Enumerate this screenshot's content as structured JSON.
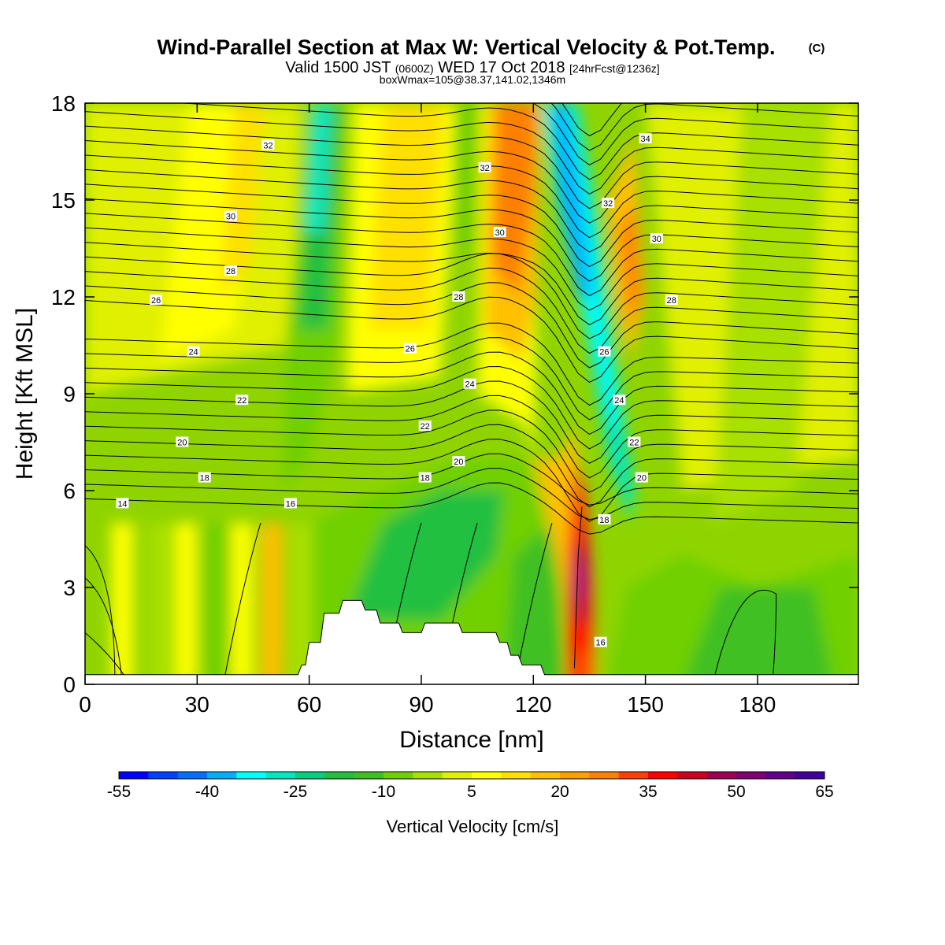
{
  "figure": {
    "title": "Wind-Parallel Section at Max W: Vertical Velocity & Pot.Temp.",
    "copyright": "(C)",
    "subtitle_a": "Valid 1500 JST",
    "subtitle_b": "(0600Z)",
    "subtitle_c": "WED 17 Oct 2018",
    "subtitle_d": "[24hrFcst@1236z]",
    "subtitle2": "boxWmax=105@38.37,141.02,1346m"
  },
  "chart_data": {
    "type": "heatmap",
    "xlabel": "Distance [nm]",
    "ylabel": "Height [Kft MSL]",
    "xlim": [
      0,
      207
    ],
    "ylim": [
      0,
      18
    ],
    "x_ticks": [
      "0",
      "30",
      "60",
      "90",
      "120",
      "150",
      "180"
    ],
    "y_ticks": [
      "0",
      "3",
      "6",
      "9",
      "12",
      "15",
      "18"
    ],
    "colorbar": {
      "title": "Vertical Velocity [cm/s]",
      "min": -55,
      "max": 65,
      "step": 5,
      "tick_labels": [
        "-55",
        "-40",
        "-25",
        "-10",
        "5",
        "20",
        "35",
        "50",
        "65"
      ],
      "colors": [
        "#0000ff",
        "#0040ff",
        "#0070ff",
        "#00b0ff",
        "#00ffff",
        "#00e8c0",
        "#00d080",
        "#20c040",
        "#40c020",
        "#70d000",
        "#a8e000",
        "#e0f000",
        "#ffff00",
        "#ffe000",
        "#ffc000",
        "#ffa000",
        "#ff8000",
        "#ff4000",
        "#ff0000",
        "#d00020",
        "#a00050",
        "#800070",
        "#600090",
        "#4000a0"
      ]
    },
    "terrain_kft": [
      [
        0,
        0.3
      ],
      [
        57,
        0.3
      ],
      [
        58,
        0.6
      ],
      [
        59,
        0.6
      ],
      [
        60,
        1.3
      ],
      [
        63,
        1.3
      ],
      [
        64,
        2.2
      ],
      [
        68,
        2.2
      ],
      [
        69,
        2.6
      ],
      [
        74,
        2.6
      ],
      [
        75,
        2.3
      ],
      [
        78,
        2.3
      ],
      [
        79,
        1.9
      ],
      [
        84,
        1.9
      ],
      [
        85,
        1.6
      ],
      [
        90,
        1.6
      ],
      [
        91,
        1.9
      ],
      [
        100,
        1.9
      ],
      [
        101,
        1.6
      ],
      [
        110,
        1.6
      ],
      [
        111,
        1.3
      ],
      [
        113,
        1.3
      ],
      [
        114,
        0.9
      ],
      [
        116,
        0.9
      ],
      [
        117,
        0.6
      ],
      [
        122,
        0.6
      ],
      [
        123,
        0.3
      ],
      [
        207,
        0.3
      ]
    ],
    "theta_contours": {
      "units": "deg C potential temperature",
      "labels": [
        {
          "text": "14",
          "x": 10,
          "y": 5.6
        },
        {
          "text": "16",
          "x": 55,
          "y": 5.6
        },
        {
          "text": "16",
          "x": 138,
          "y": 1.3
        },
        {
          "text": "18",
          "x": 32,
          "y": 6.4
        },
        {
          "text": "18",
          "x": 91,
          "y": 6.4
        },
        {
          "text": "18",
          "x": 139,
          "y": 5.1
        },
        {
          "text": "20",
          "x": 26,
          "y": 7.5
        },
        {
          "text": "20",
          "x": 100,
          "y": 6.9
        },
        {
          "text": "20",
          "x": 149,
          "y": 6.4
        },
        {
          "text": "22",
          "x": 42,
          "y": 8.8
        },
        {
          "text": "22",
          "x": 91,
          "y": 8.0
        },
        {
          "text": "22",
          "x": 147,
          "y": 7.5
        },
        {
          "text": "24",
          "x": 29,
          "y": 10.3
        },
        {
          "text": "24",
          "x": 103,
          "y": 9.3
        },
        {
          "text": "24",
          "x": 143,
          "y": 8.8
        },
        {
          "text": "26",
          "x": 19,
          "y": 11.9
        },
        {
          "text": "26",
          "x": 87,
          "y": 10.4
        },
        {
          "text": "26",
          "x": 139,
          "y": 10.3
        },
        {
          "text": "28",
          "x": 39,
          "y": 12.8
        },
        {
          "text": "28",
          "x": 100,
          "y": 12.0
        },
        {
          "text": "28",
          "x": 157,
          "y": 11.9
        },
        {
          "text": "30",
          "x": 39,
          "y": 14.5
        },
        {
          "text": "30",
          "x": 111,
          "y": 14.0
        },
        {
          "text": "30",
          "x": 153,
          "y": 13.8
        },
        {
          "text": "32",
          "x": 49,
          "y": 16.7
        },
        {
          "text": "32",
          "x": 107,
          "y": 16.0
        },
        {
          "text": "32",
          "x": 140,
          "y": 14.9
        },
        {
          "text": "34",
          "x": 150,
          "y": 16.9
        }
      ]
    }
  }
}
